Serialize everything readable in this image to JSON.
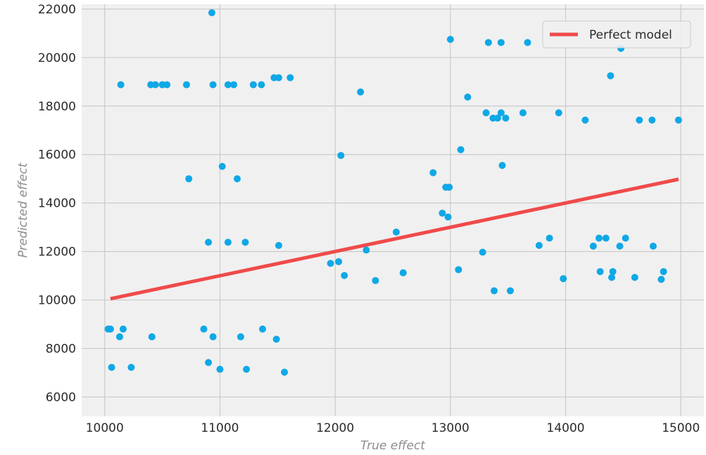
{
  "chart_data": {
    "type": "scatter",
    "xlabel": "True effect",
    "ylabel": "Predicted effect",
    "xlim": [
      9800,
      15200
    ],
    "ylim": [
      5200,
      22200
    ],
    "xticks": [
      10000,
      11000,
      12000,
      13000,
      14000,
      15000
    ],
    "yticks": [
      6000,
      8000,
      10000,
      12000,
      14000,
      16000,
      18000,
      20000,
      22000
    ],
    "grid": true,
    "legend_position": "top-right",
    "colors": {
      "background": "#f0f0f0",
      "grid": "#cbcbcb",
      "points": "#0fa8e6",
      "line": "#f04a4a"
    },
    "series": [
      {
        "type": "line",
        "name": "Perfect model",
        "points": [
          [
            10050,
            10050
          ],
          [
            14980,
            14980
          ]
        ]
      },
      {
        "type": "scatter",
        "points": [
          [
            10930,
            21850
          ],
          [
            10140,
            18880
          ],
          [
            10400,
            18880
          ],
          [
            10440,
            18880
          ],
          [
            10500,
            18880
          ],
          [
            10540,
            18880
          ],
          [
            10710,
            18880
          ],
          [
            10940,
            18880
          ],
          [
            11070,
            18880
          ],
          [
            11120,
            18880
          ],
          [
            11290,
            18880
          ],
          [
            11360,
            18880
          ],
          [
            11470,
            19170
          ],
          [
            11510,
            19170
          ],
          [
            11610,
            19170
          ],
          [
            12220,
            18580
          ],
          [
            13000,
            20750
          ],
          [
            13330,
            20620
          ],
          [
            13440,
            20620
          ],
          [
            13670,
            20620
          ],
          [
            14480,
            20380
          ],
          [
            14390,
            19250
          ],
          [
            13150,
            18370
          ],
          [
            13310,
            17720
          ],
          [
            13440,
            17720
          ],
          [
            13630,
            17720
          ],
          [
            13940,
            17720
          ],
          [
            13370,
            17500
          ],
          [
            13410,
            17500
          ],
          [
            13480,
            17500
          ],
          [
            14170,
            17420
          ],
          [
            14640,
            17420
          ],
          [
            14750,
            17420
          ],
          [
            14980,
            17420
          ],
          [
            13090,
            16200
          ],
          [
            12050,
            15960
          ],
          [
            13450,
            15550
          ],
          [
            11020,
            15510
          ],
          [
            10730,
            15000
          ],
          [
            11150,
            15000
          ],
          [
            12850,
            15250
          ],
          [
            12960,
            14650
          ],
          [
            12990,
            14650
          ],
          [
            12930,
            13580
          ],
          [
            12980,
            13420
          ],
          [
            10900,
            12380
          ],
          [
            11070,
            12380
          ],
          [
            11220,
            12380
          ],
          [
            11510,
            12250
          ],
          [
            12530,
            12800
          ],
          [
            13860,
            12550
          ],
          [
            13770,
            12250
          ],
          [
            14290,
            12550
          ],
          [
            14350,
            12550
          ],
          [
            14520,
            12550
          ],
          [
            14240,
            12220
          ],
          [
            14470,
            12220
          ],
          [
            14760,
            12220
          ],
          [
            11960,
            11510
          ],
          [
            12030,
            11580
          ],
          [
            12270,
            12060
          ],
          [
            13280,
            11970
          ],
          [
            12080,
            11010
          ],
          [
            12350,
            10800
          ],
          [
            12590,
            11120
          ],
          [
            13070,
            11250
          ],
          [
            13380,
            10380
          ],
          [
            13520,
            10380
          ],
          [
            13980,
            10880
          ],
          [
            14300,
            11170
          ],
          [
            14410,
            11170
          ],
          [
            14400,
            10930
          ],
          [
            14600,
            10930
          ],
          [
            14830,
            10850
          ],
          [
            14850,
            11170
          ],
          [
            10030,
            8800
          ],
          [
            10050,
            8800
          ],
          [
            10160,
            8800
          ],
          [
            10130,
            8480
          ],
          [
            10410,
            8480
          ],
          [
            10860,
            8800
          ],
          [
            10940,
            8480
          ],
          [
            11180,
            8480
          ],
          [
            11370,
            8800
          ],
          [
            11490,
            8380
          ],
          [
            10060,
            7220
          ],
          [
            10230,
            7220
          ],
          [
            10900,
            7420
          ],
          [
            11000,
            7140
          ],
          [
            11230,
            7140
          ],
          [
            11560,
            7020
          ]
        ]
      }
    ]
  }
}
